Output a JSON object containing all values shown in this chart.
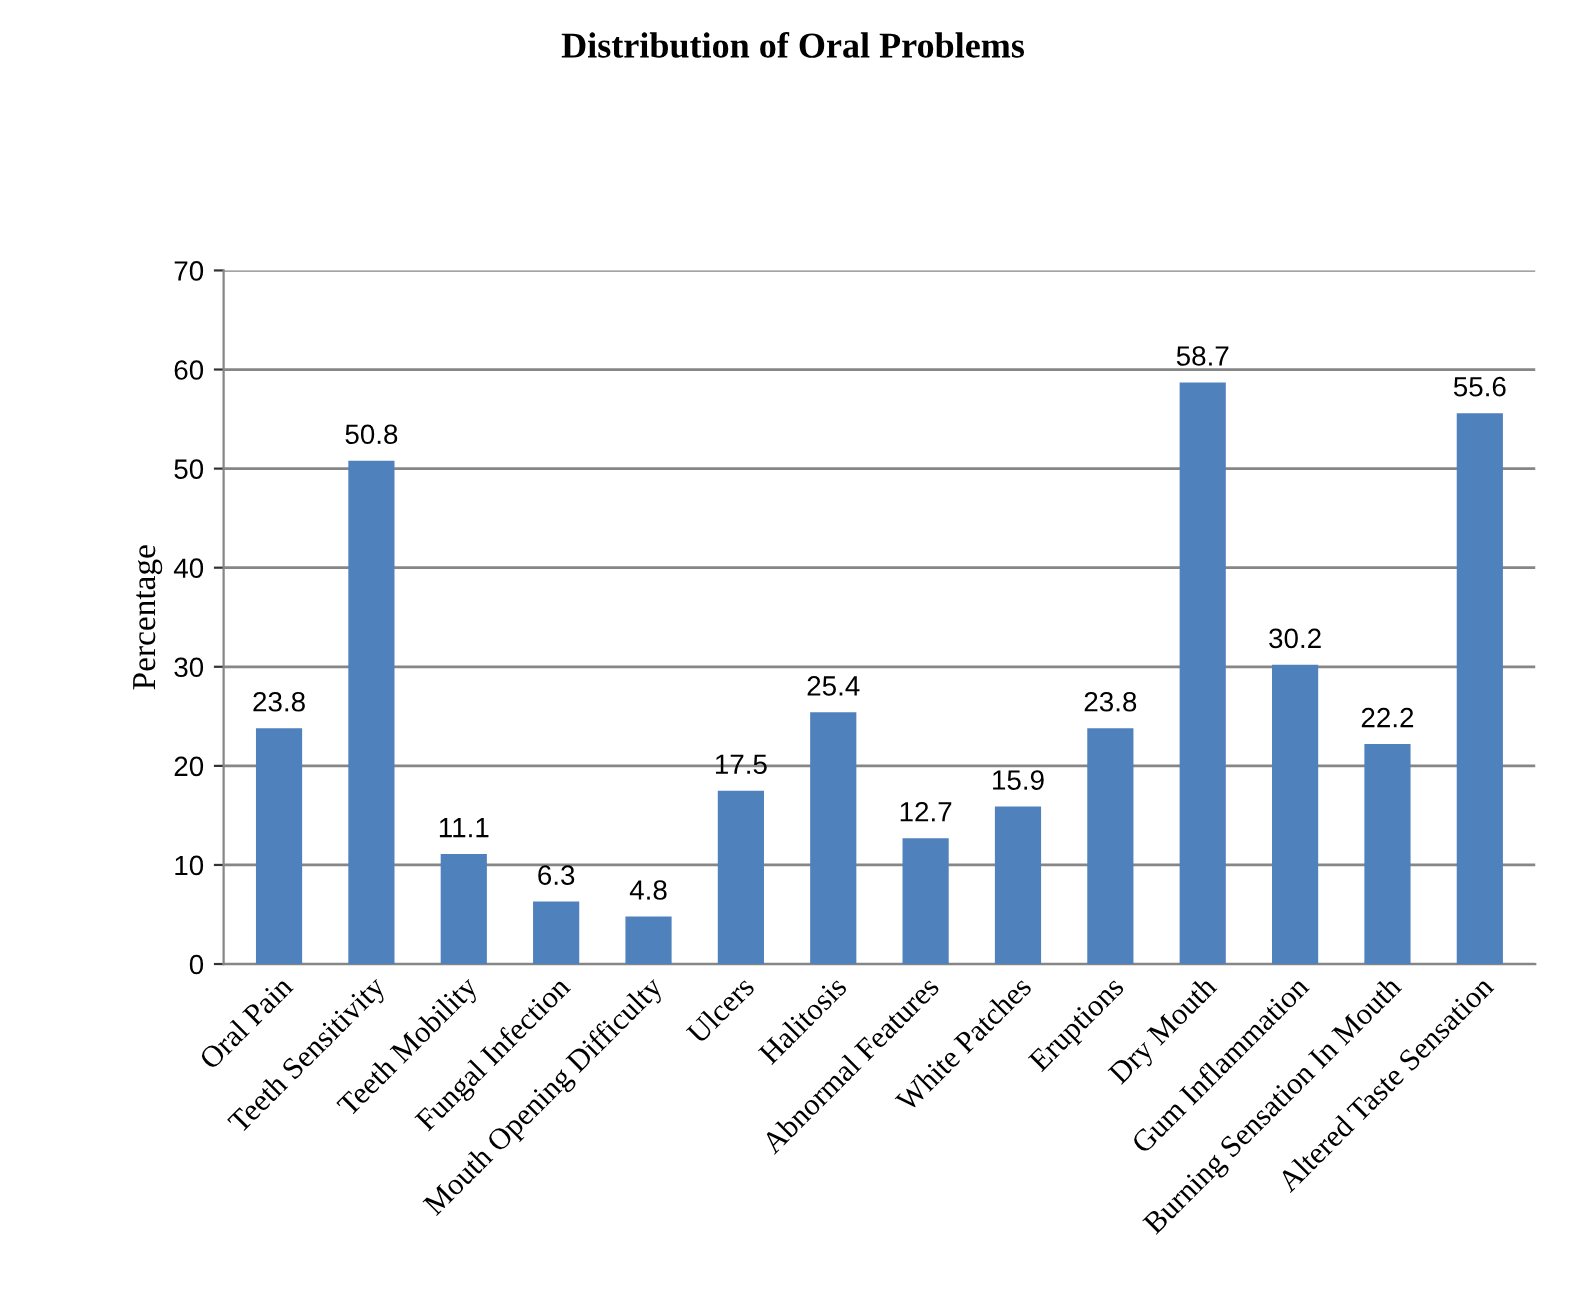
{
  "chart_data": {
    "type": "bar",
    "title": "Distribution of Oral Problems",
    "ylabel": "Percentage",
    "categories": [
      "Oral Pain",
      "Teeth Sensitivity",
      "Teeth Mobility",
      "Fungal Infection",
      "Mouth Opening Difficulty",
      "Ulcers",
      "Halitosis",
      "Abnormal Features",
      "White Patches",
      "Eruptions",
      "Dry Mouth",
      "Gum Inflammation",
      "Burning Sensation In Mouth",
      "Altered Taste Sensation"
    ],
    "values": [
      23.8,
      50.8,
      11.1,
      6.3,
      4.8,
      17.5,
      25.4,
      12.7,
      15.9,
      23.8,
      58.7,
      30.2,
      22.2,
      55.6
    ],
    "color": "#4f81bd",
    "ylim": [
      0,
      70
    ],
    "yticks": [
      0,
      10,
      20,
      30,
      40,
      50,
      60,
      70
    ],
    "grid": "y",
    "data_labels": true
  }
}
